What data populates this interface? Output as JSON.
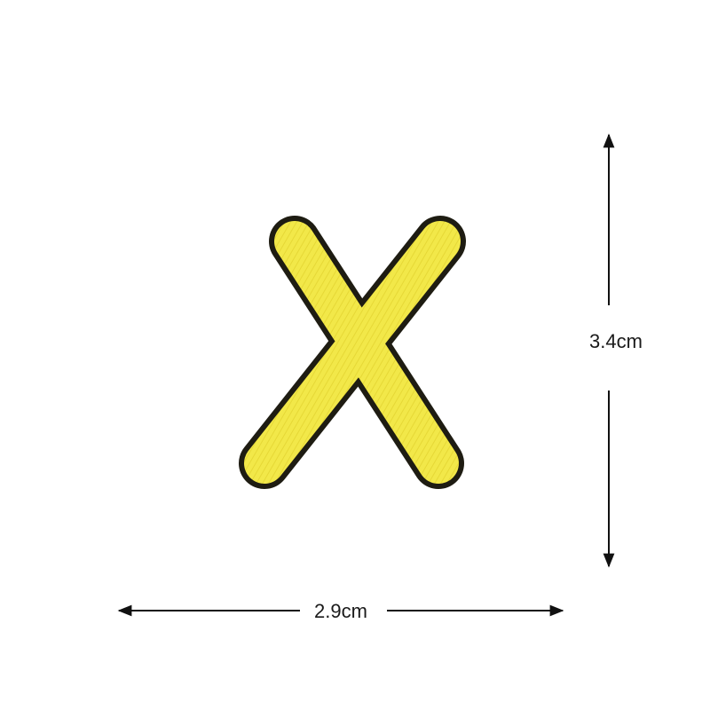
{
  "product": {
    "letter": "X",
    "fill_color": "#f2e849",
    "outline_color": "#1e1c12"
  },
  "dimensions": {
    "height_label": "3.4cm",
    "width_label": "2.9cm",
    "line_color": "#111111"
  }
}
